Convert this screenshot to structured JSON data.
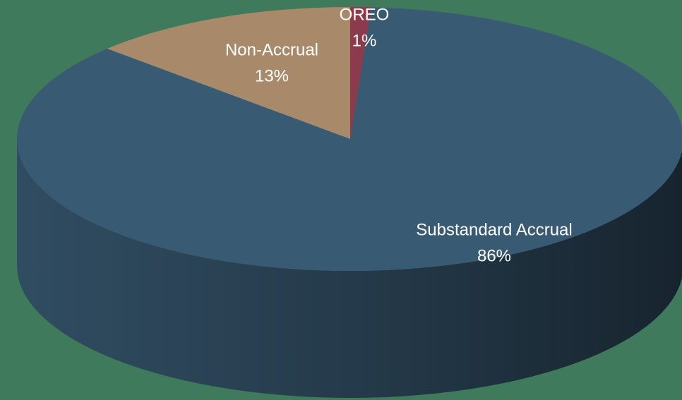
{
  "chart_data": {
    "type": "pie3d",
    "categories": [
      "OREO",
      "Substandard Accrual",
      "Non-Accrual"
    ],
    "values": [
      1,
      86,
      13
    ],
    "value_labels": [
      "1%",
      "86%",
      "13%"
    ],
    "colors": [
      "#8b3b4c",
      "#395a73",
      "#a88a6b"
    ]
  }
}
